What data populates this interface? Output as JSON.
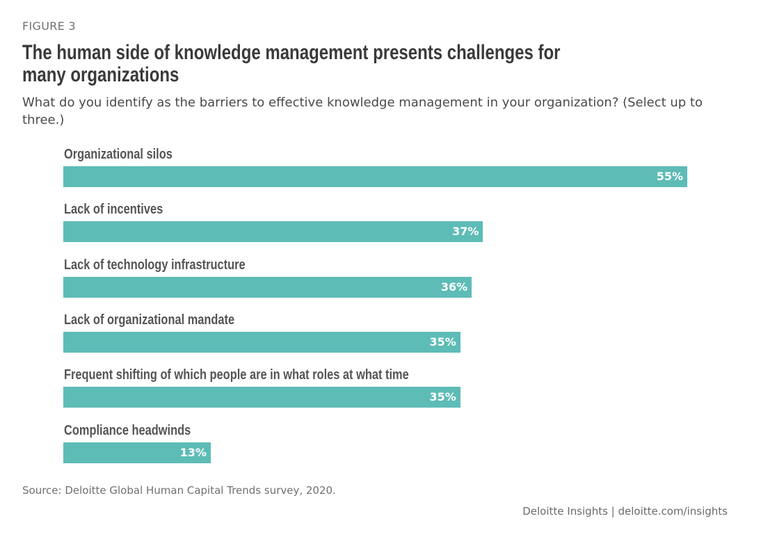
{
  "figure_label": "FIGURE 3",
  "chart_data": {
    "type": "bar",
    "orientation": "horizontal",
    "title": "The human side of knowledge management presents challenges for many organizations",
    "subtitle": "What do you identify as the barriers to effective knowledge management in your organization? (Select up to three.)",
    "categories": [
      "Organizational silos",
      "Lack of incentives",
      "Lack of technology infrastructure",
      "Lack of organizational mandate",
      "Frequent shifting of which people are in what roles at what time",
      "Compliance headwinds"
    ],
    "values": [
      55,
      37,
      36,
      35,
      35,
      13
    ],
    "value_labels": [
      "55%",
      "37%",
      "36%",
      "35%",
      "35%",
      "13%"
    ],
    "unit": "%",
    "xlim": [
      0,
      55
    ],
    "grid": false,
    "bar_color": "#5ebcb6"
  },
  "source": "Source: Deloitte Global Human Capital Trends survey, 2020.",
  "footer": "Deloitte Insights | deloitte.com/insights"
}
